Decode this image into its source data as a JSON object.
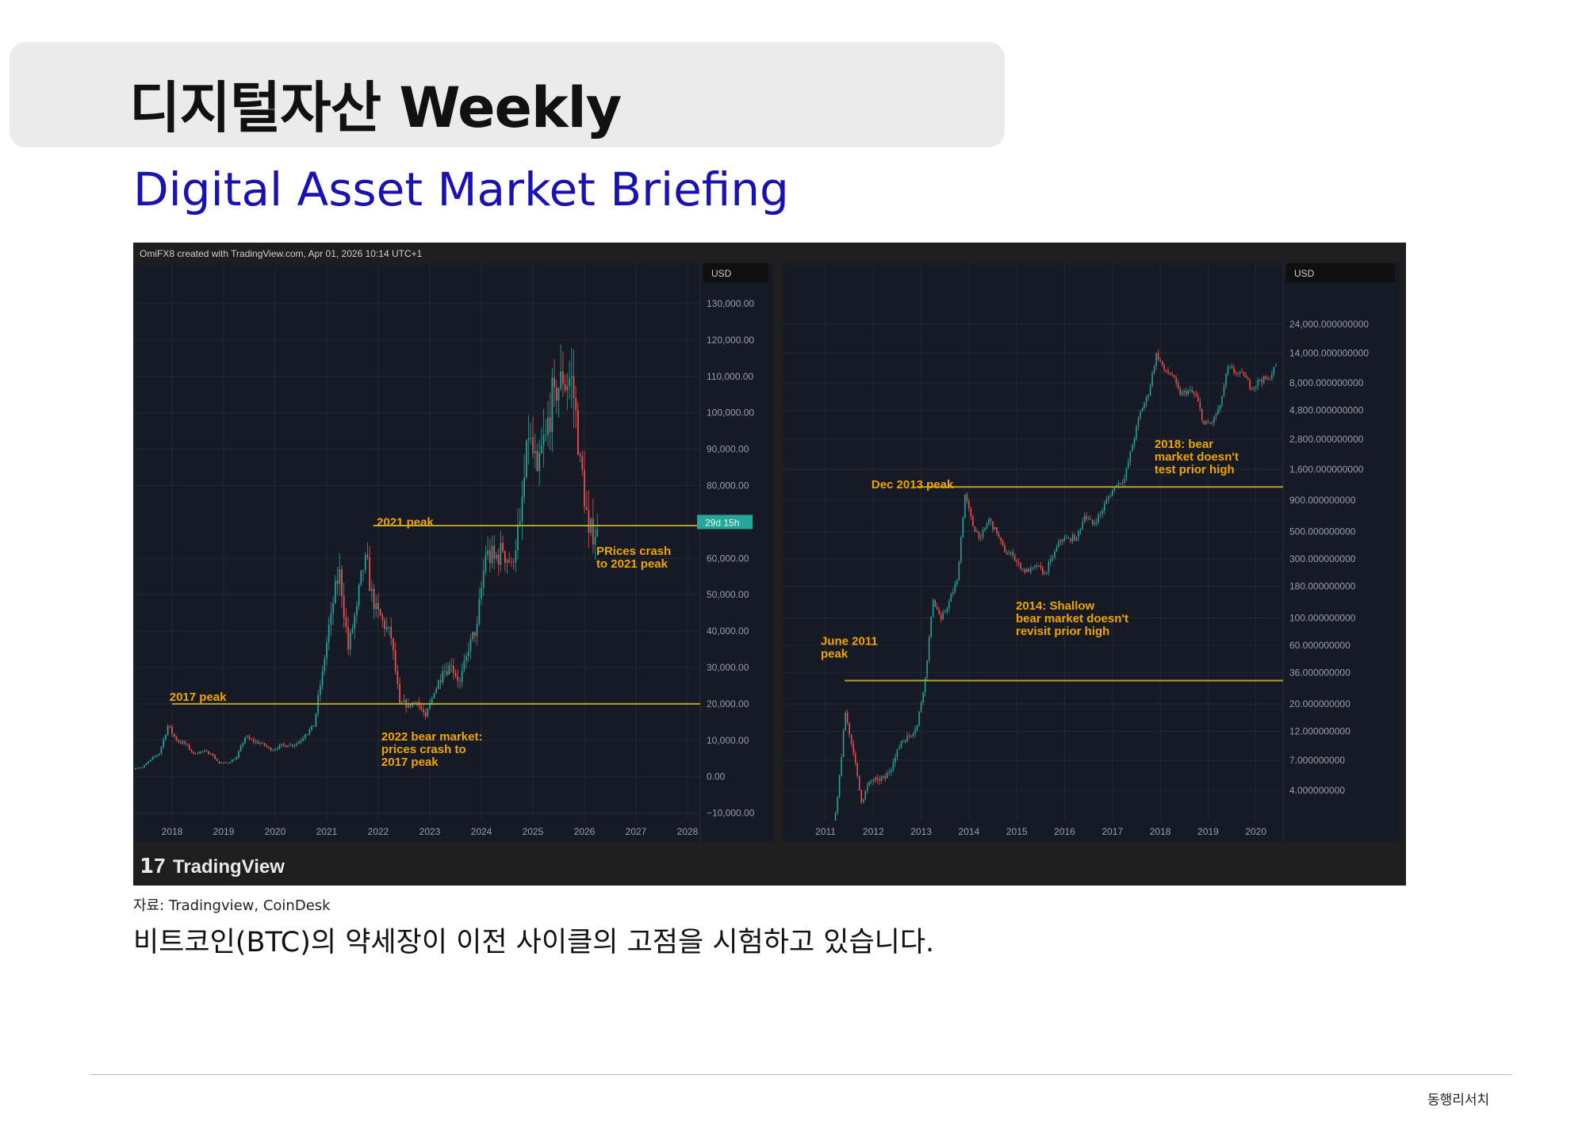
{
  "header": {
    "title": "디지털자산 Weekly",
    "subtitle": "Digital Asset Market Briefing"
  },
  "figure": {
    "watermark": "OmiFX8 created with TradingView.com, Apr 01, 2026 10:14 UTC+1",
    "logo": "TradingView",
    "source": "자료: Tradingview, CoinDesk",
    "caption": "비트코인(BTC)의 약세장이 이전 사이클의 고점을 시험하고 있습니다."
  },
  "colors": {
    "up": "#26a69a",
    "down": "#ef5350",
    "annotation": "#f0a500",
    "level_line": "#b5a22a",
    "plot_bg": "#161a25",
    "title": "#1a12b0"
  },
  "chart_data": [
    {
      "type": "candlestick",
      "currency_label": "USD",
      "scale": "linear",
      "ylim": [
        -10000,
        130000
      ],
      "y_ticks": [
        "130,000.00",
        "120,000.00",
        "110,000.00",
        "100,000.00",
        "90,000.00",
        "80,000.00",
        "60,000.00",
        "50,000.00",
        "40,000.00",
        "30,000.00",
        "20,000.00",
        "10,000.00",
        "0.00",
        "−10,000.00"
      ],
      "y_tick_values": [
        130000,
        120000,
        110000,
        100000,
        90000,
        80000,
        60000,
        50000,
        40000,
        30000,
        20000,
        10000,
        0,
        -10000
      ],
      "x_ticks": [
        "2018",
        "2019",
        "2020",
        "2021",
        "2022",
        "2023",
        "2024",
        "2025",
        "2026",
        "2027",
        "2028"
      ],
      "countdown_badge": "29d 15h",
      "countdown_value": 70000,
      "series": {
        "start": "2017-06",
        "step_months": 2,
        "close": [
          2500,
          4700,
          6400,
          14000,
          10000,
          9000,
          6400,
          7000,
          6300,
          3700,
          3800,
          5300,
          10800,
          9600,
          9200,
          7200,
          8500,
          8600,
          9100,
          11600,
          13800,
          29000,
          45000,
          57000,
          35000,
          47000,
          61000,
          46000,
          43000,
          38000,
          20000,
          20000,
          20500,
          16500,
          23000,
          29000,
          30500,
          26000,
          34500,
          42000,
          61000,
          60000,
          62000,
          59000,
          70000,
          93000,
          84000,
          94000,
          107000,
          108000,
          110000,
          88000,
          67000,
          68000
        ]
      },
      "levels": [
        {
          "value": 20000,
          "from": 2018.0
        },
        {
          "value": 69000,
          "from": 2021.9
        }
      ],
      "annotations": [
        {
          "text": "2017 peak",
          "x": 2017.95,
          "y": 23500
        },
        {
          "text": "2021 peak",
          "x": 2021.97,
          "y": 71500
        },
        {
          "lines": [
            "2022 bear market:",
            "prices crash to",
            "2017 peak"
          ],
          "x": 2022.06,
          "y": 12600
        },
        {
          "lines": [
            "PRices crash",
            "to 2021 peak"
          ],
          "x": 2026.23,
          "y": 63500
        }
      ]
    },
    {
      "type": "candlestick",
      "currency_label": "USD",
      "scale": "log",
      "y_ticks": [
        "24,000.000000000",
        "14,000.000000000",
        "8,000.000000000",
        "4,800.000000000",
        "2,800.000000000",
        "1,600.000000000",
        "900.000000000",
        "500.000000000",
        "300.000000000",
        "180.000000000",
        "100.000000000",
        "60.000000000",
        "36.000000000",
        "20.000000000",
        "12.000000000",
        "7.000000000",
        "4.000000000"
      ],
      "y_tick_values": [
        24000,
        14000,
        8000,
        4800,
        2800,
        1600,
        900,
        500,
        300,
        180,
        100,
        60,
        36,
        20,
        12,
        7,
        4
      ],
      "x_ticks": [
        "2011",
        "2012",
        "2013",
        "2014",
        "2015",
        "2016",
        "2017",
        "2018",
        "2019",
        "2020"
      ],
      "series": {
        "start": "2011-02",
        "step_months": 2,
        "close": [
          1,
          3.5,
          17,
          8,
          3.2,
          4.7,
          4.9,
          5,
          6.7,
          10,
          11,
          13.5,
          33,
          140,
          97,
          135,
          200,
          1000,
          550,
          450,
          630,
          480,
          340,
          320,
          250,
          236,
          260,
          230,
          310,
          430,
          440,
          450,
          670,
          575,
          700,
          960,
          1190,
          1350,
          2500,
          4700,
          6400,
          14000,
          10300,
          9200,
          6400,
          7000,
          6300,
          3700,
          3800,
          5300,
          10800,
          9600,
          9200,
          7200,
          8500,
          8600,
          11000
        ]
      },
      "levels": [
        {
          "value": 31,
          "from": 2011.4
        },
        {
          "value": 1150,
          "from": 2012.9
        }
      ],
      "annotations": [
        {
          "lines": [
            "June 2011",
            "peak"
          ],
          "x": 2010.9,
          "y": 72
        },
        {
          "text": "Dec 2013 peak",
          "x": 2011.96,
          "y": 1340
        },
        {
          "lines": [
            "2014: Shallow",
            "bear market doesn't",
            "revisit prior high"
          ],
          "x": 2014.98,
          "y": 139
        },
        {
          "lines": [
            "2018: bear",
            "market doesn't",
            "test prior high"
          ],
          "x": 2017.88,
          "y": 2850
        }
      ]
    }
  ],
  "footer": {
    "brand": "동행리서치"
  }
}
